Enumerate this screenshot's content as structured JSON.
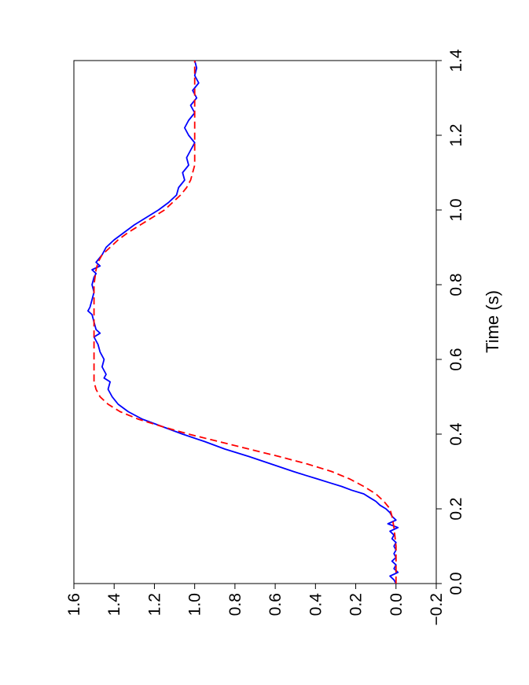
{
  "chart_data": {
    "type": "line",
    "title": "",
    "xlabel": "Time (s)",
    "ylabel": "",
    "xlim": [
      0.0,
      1.4
    ],
    "ylim": [
      -0.2,
      1.6
    ],
    "xticks": [
      "0.0",
      "0.2",
      "0.4",
      "0.6",
      "0.8",
      "1.0",
      "1.2",
      "1.4"
    ],
    "yticks": [
      "−0.2",
      "0.0",
      "0.2",
      "0.4",
      "0.6",
      "0.8",
      "1.0",
      "1.2",
      "1.4",
      "1.6"
    ],
    "xtick_values": [
      0.0,
      0.2,
      0.4,
      0.6,
      0.8,
      1.0,
      1.2,
      1.4
    ],
    "ytick_values": [
      -0.2,
      0.0,
      0.2,
      0.4,
      0.6,
      0.8,
      1.0,
      1.2,
      1.4,
      1.6
    ],
    "orientation": "rotated 90° counter-clockwise",
    "grid": false,
    "series": [
      {
        "color": "#0000ff",
        "style": "solid",
        "x": [
          0.0,
          0.01,
          0.02,
          0.03,
          0.04,
          0.05,
          0.06,
          0.07,
          0.08,
          0.09,
          0.1,
          0.11,
          0.12,
          0.13,
          0.14,
          0.15,
          0.16,
          0.17,
          0.18,
          0.19,
          0.2,
          0.21,
          0.22,
          0.23,
          0.24,
          0.25,
          0.26,
          0.27,
          0.28,
          0.29,
          0.3,
          0.32,
          0.34,
          0.36,
          0.38,
          0.4,
          0.42,
          0.44,
          0.46,
          0.48,
          0.5,
          0.52,
          0.54,
          0.55,
          0.56,
          0.58,
          0.6,
          0.62,
          0.64,
          0.66,
          0.67,
          0.68,
          0.7,
          0.72,
          0.73,
          0.74,
          0.76,
          0.78,
          0.8,
          0.82,
          0.83,
          0.84,
          0.85,
          0.86,
          0.88,
          0.9,
          0.92,
          0.94,
          0.96,
          0.98,
          1.0,
          1.02,
          1.04,
          1.06,
          1.08,
          1.1,
          1.12,
          1.14,
          1.16,
          1.18,
          1.2,
          1.22,
          1.24,
          1.26,
          1.28,
          1.3,
          1.32,
          1.34,
          1.36,
          1.38,
          1.4
        ],
        "y": [
          0.0,
          0.01,
          0.03,
          -0.01,
          0.01,
          0.0,
          0.02,
          0.0,
          0.01,
          0.0,
          0.01,
          0.0,
          0.02,
          0.01,
          0.03,
          -0.01,
          0.04,
          0.0,
          0.02,
          0.03,
          0.05,
          0.08,
          0.1,
          0.13,
          0.16,
          0.22,
          0.27,
          0.33,
          0.39,
          0.45,
          0.51,
          0.62,
          0.73,
          0.85,
          0.95,
          1.06,
          1.16,
          1.26,
          1.33,
          1.38,
          1.41,
          1.43,
          1.42,
          1.45,
          1.44,
          1.46,
          1.45,
          1.47,
          1.48,
          1.5,
          1.47,
          1.49,
          1.5,
          1.51,
          1.53,
          1.52,
          1.51,
          1.5,
          1.51,
          1.5,
          1.49,
          1.51,
          1.47,
          1.49,
          1.46,
          1.44,
          1.4,
          1.35,
          1.3,
          1.24,
          1.18,
          1.13,
          1.09,
          1.08,
          1.05,
          1.06,
          1.03,
          1.04,
          1.02,
          1.0,
          1.03,
          1.05,
          1.03,
          1.0,
          1.02,
          0.99,
          1.01,
          0.98,
          1.0,
          0.99,
          1.0
        ]
      },
      {
        "color": "#ff0000",
        "style": "dashed",
        "x": [
          0.0,
          0.05,
          0.1,
          0.15,
          0.18,
          0.2,
          0.22,
          0.24,
          0.26,
          0.28,
          0.3,
          0.32,
          0.34,
          0.36,
          0.38,
          0.4,
          0.42,
          0.44,
          0.46,
          0.48,
          0.5,
          0.52,
          0.54,
          0.56,
          0.58,
          0.6,
          0.65,
          0.7,
          0.75,
          0.8,
          0.84,
          0.86,
          0.88,
          0.9,
          0.92,
          0.94,
          0.96,
          0.98,
          1.0,
          1.02,
          1.04,
          1.06,
          1.08,
          1.1,
          1.12,
          1.15,
          1.2,
          1.25,
          1.3,
          1.35,
          1.4
        ],
        "y": [
          0.0,
          0.0,
          0.0,
          0.01,
          0.02,
          0.03,
          0.06,
          0.1,
          0.16,
          0.23,
          0.32,
          0.44,
          0.58,
          0.73,
          0.88,
          1.03,
          1.16,
          1.28,
          1.37,
          1.43,
          1.47,
          1.49,
          1.5,
          1.5,
          1.5,
          1.5,
          1.5,
          1.5,
          1.5,
          1.5,
          1.49,
          1.48,
          1.46,
          1.42,
          1.38,
          1.33,
          1.27,
          1.21,
          1.15,
          1.11,
          1.07,
          1.04,
          1.02,
          1.01,
          1.0,
          1.0,
          1.0,
          1.0,
          1.0,
          1.0,
          1.0
        ]
      }
    ]
  }
}
